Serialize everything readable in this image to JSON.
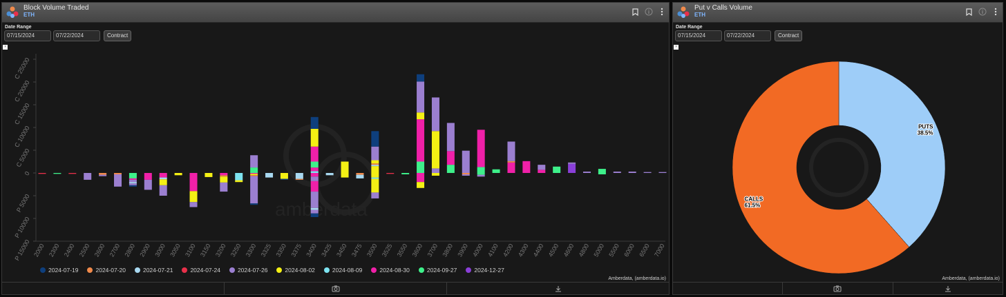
{
  "left": {
    "title": "Block Volume Traded",
    "subtitle": "ETH",
    "date_range_label": "Date Range",
    "date_from": "07/15/2024",
    "date_to": "07/22/2024",
    "contract_btn": "Contract",
    "watermark": "amberdata",
    "credit": "Amberdata, (amberdata.io)"
  },
  "right": {
    "title": "Put v Calls Volume",
    "subtitle": "ETH",
    "date_range_label": "Date Range",
    "date_from": "07/15/2024",
    "date_to": "07/22/2024",
    "contract_btn": "Contract",
    "credit": "Amberdata, (amberdata.io)"
  },
  "colors": {
    "2024-07-19": "#0e3f7d",
    "2024-07-20": "#f08a4b",
    "2024-07-21": "#a8d8f0",
    "2024-07-24": "#e8304a",
    "2024-07-26": "#9b7fd0",
    "2024-08-02": "#f4f014",
    "2024-08-09": "#7de3f0",
    "2024-08-30": "#f020a8",
    "2024-09-27": "#3ef08a",
    "2024-12-27": "#8a3fd8"
  },
  "chart_data": [
    {
      "type": "bar",
      "title": "Block Volume Traded",
      "stacked": true,
      "categories": [
        "2000",
        "2300",
        "2400",
        "2500",
        "2600",
        "2700",
        "2800",
        "2900",
        "3000",
        "3050",
        "3100",
        "3150",
        "3200",
        "3250",
        "3300",
        "3325",
        "3350",
        "3375",
        "3400",
        "3425",
        "3450",
        "3475",
        "3500",
        "3525",
        "3550",
        "3600",
        "3700",
        "3800",
        "3900",
        "4000",
        "4100",
        "4200",
        "4300",
        "4400",
        "4500",
        "4600",
        "4800",
        "5000",
        "5500",
        "6000",
        "6500",
        "7000"
      ],
      "ytick_labels": [
        "C 25000",
        "C 20000",
        "C 15000",
        "C 10000",
        "C 5000",
        "0",
        "P 5000",
        "P 10000",
        "P 15000"
      ],
      "ylim": [
        -15000,
        25000
      ],
      "legend": [
        "2024-07-19",
        "2024-07-20",
        "2024-07-21",
        "2024-07-24",
        "2024-07-26",
        "2024-08-02",
        "2024-08-09",
        "2024-08-30",
        "2024-09-27",
        "2024-12-27"
      ],
      "bars": [
        {
          "x": "2000",
          "calls": [],
          "puts": [
            [
              "2024-07-24",
              200
            ]
          ]
        },
        {
          "x": "2300",
          "calls": [],
          "puts": [
            [
              "2024-09-27",
              200
            ]
          ]
        },
        {
          "x": "2400",
          "calls": [],
          "puts": [
            [
              "2024-07-24",
              200
            ]
          ]
        },
        {
          "x": "2500",
          "calls": [],
          "puts": [
            [
              "2024-07-26",
              1500
            ]
          ]
        },
        {
          "x": "2600",
          "calls": [],
          "puts": [
            [
              "2024-07-20",
              400
            ],
            [
              "2024-07-26",
              300
            ]
          ]
        },
        {
          "x": "2700",
          "calls": [],
          "puts": [
            [
              "2024-07-20",
              300
            ],
            [
              "2024-07-26",
              2700
            ]
          ]
        },
        {
          "x": "2800",
          "calls": [],
          "puts": [
            [
              "2024-09-27",
              1200
            ],
            [
              "2024-08-30",
              300
            ],
            [
              "2024-07-26",
              500
            ],
            [
              "2024-07-21",
              300
            ],
            [
              "2024-07-26",
              400
            ],
            [
              "2024-07-19",
              300
            ]
          ]
        },
        {
          "x": "2900",
          "calls": [],
          "puts": [
            [
              "2024-08-30",
              1500
            ],
            [
              "2024-07-26",
              2200
            ]
          ]
        },
        {
          "x": "3000",
          "calls": [],
          "puts": [
            [
              "2024-08-30",
              1000
            ],
            [
              "2024-07-21",
              400
            ],
            [
              "2024-08-02",
              1300
            ],
            [
              "2024-07-26",
              2300
            ]
          ]
        },
        {
          "x": "3050",
          "calls": [],
          "puts": [
            [
              "2024-08-02",
              500
            ]
          ]
        },
        {
          "x": "3100",
          "calls": [],
          "puts": [
            [
              "2024-08-30",
              4000
            ],
            [
              "2024-08-02",
              2400
            ],
            [
              "2024-07-26",
              1100
            ]
          ]
        },
        {
          "x": "3150",
          "calls": [],
          "puts": [
            [
              "2024-08-02",
              900
            ]
          ]
        },
        {
          "x": "3200",
          "calls": [],
          "puts": [
            [
              "2024-08-30",
              500
            ],
            [
              "2024-07-20",
              300
            ],
            [
              "2024-08-02",
              1300
            ],
            [
              "2024-07-26",
              2000
            ]
          ]
        },
        {
          "x": "3250",
          "calls": [],
          "puts": [
            [
              "2024-08-09",
              1600
            ],
            [
              "2024-08-02",
              400
            ]
          ]
        },
        {
          "x": "3300",
          "calls": [
            [
              "2024-09-27",
              1200
            ],
            [
              "2024-07-26",
              2700
            ]
          ],
          "puts": [
            [
              "2024-08-30",
              200
            ],
            [
              "2024-08-02",
              300
            ],
            [
              "2024-07-20",
              200
            ],
            [
              "2024-07-26",
              6000
            ],
            [
              "2024-07-19",
              300
            ]
          ]
        },
        {
          "x": "3325",
          "calls": [],
          "puts": [
            [
              "2024-07-21",
              1000
            ]
          ]
        },
        {
          "x": "3350",
          "calls": [],
          "puts": [
            [
              "2024-08-02",
              1300
            ],
            [
              "2024-07-19",
              200
            ]
          ]
        },
        {
          "x": "3375",
          "calls": [],
          "puts": [
            [
              "2024-07-21",
              1300
            ],
            [
              "2024-07-20",
              200
            ]
          ]
        },
        {
          "x": "3400",
          "calls": [
            [
              "2024-08-09",
              400
            ],
            [
              "2024-08-30",
              800
            ],
            [
              "2024-09-27",
              1300
            ],
            [
              "2024-08-30",
              3300
            ],
            [
              "2024-08-02",
              3900
            ],
            [
              "2024-07-19",
              2600
            ]
          ],
          "puts": [
            [
              "2024-08-30",
              800
            ],
            [
              "2024-07-26",
              1000
            ],
            [
              "2024-08-30",
              2300
            ],
            [
              "2024-07-26",
              3600
            ],
            [
              "2024-07-21",
              400
            ],
            [
              "2024-07-26",
              800
            ],
            [
              "2024-07-19",
              800
            ]
          ]
        },
        {
          "x": "3425",
          "calls": [],
          "puts": [
            [
              "2024-07-21",
              500
            ]
          ]
        },
        {
          "x": "3450",
          "calls": [
            [
              "2024-08-02",
              2500
            ]
          ],
          "puts": [
            [
              "2024-08-02",
              1000
            ]
          ]
        },
        {
          "x": "3475",
          "calls": [],
          "puts": [
            [
              "2024-07-20",
              400
            ],
            [
              "2024-07-21",
              800
            ]
          ]
        },
        {
          "x": "3500",
          "calls": [
            [
              "2024-08-02",
              1500
            ],
            [
              "2024-07-21",
              300
            ],
            [
              "2024-07-20",
              300
            ],
            [
              "2024-08-02",
              700
            ],
            [
              "2024-07-26",
              3000
            ],
            [
              "2024-07-19",
              3400
            ]
          ],
          "puts": [
            [
              "2024-08-02",
              1000
            ],
            [
              "2024-08-09",
              300
            ],
            [
              "2024-08-02",
              3000
            ],
            [
              "2024-07-26",
              1300
            ]
          ]
        },
        {
          "x": "3525",
          "calls": [],
          "puts": [
            [
              "2024-07-24",
              200
            ]
          ]
        },
        {
          "x": "3550",
          "calls": [],
          "puts": [
            [
              "2024-09-27",
              300
            ]
          ]
        },
        {
          "x": "3600",
          "calls": [
            [
              "2024-09-27",
              2500
            ],
            [
              "2024-08-30",
              9300
            ],
            [
              "2024-08-02",
              1500
            ],
            [
              "2024-07-26",
              6800
            ],
            [
              "2024-07-19",
              1600
            ]
          ],
          "puts": [
            [
              "2024-08-30",
              2000
            ],
            [
              "2024-08-02",
              1300
            ]
          ]
        },
        {
          "x": "3700",
          "calls": [
            [
              "2024-07-26",
              1000
            ],
            [
              "2024-08-02",
              8200
            ],
            [
              "2024-07-26",
              7400
            ]
          ],
          "puts": [
            [
              "2024-08-02",
              600
            ]
          ]
        },
        {
          "x": "3800",
          "calls": [
            [
              "2024-09-27",
              1800
            ],
            [
              "2024-08-30",
              3000
            ],
            [
              "2024-07-26",
              6200
            ]
          ],
          "puts": []
        },
        {
          "x": "3900",
          "calls": [
            [
              "2024-07-26",
              4900
            ]
          ],
          "puts": [
            [
              "2024-07-20",
              300
            ],
            [
              "2024-07-26",
              300
            ]
          ]
        },
        {
          "x": "4000",
          "calls": [
            [
              "2024-09-27",
              1300
            ],
            [
              "2024-08-30",
              8200
            ]
          ],
          "puts": [
            [
              "2024-09-27",
              400
            ],
            [
              "2024-07-26",
              400
            ]
          ]
        },
        {
          "x": "4100",
          "calls": [
            [
              "2024-09-27",
              800
            ]
          ],
          "puts": []
        },
        {
          "x": "4200",
          "calls": [
            [
              "2024-08-30",
              2300
            ],
            [
              "2024-07-20",
              300
            ],
            [
              "2024-07-26",
              4300
            ]
          ],
          "puts": []
        },
        {
          "x": "4300",
          "calls": [
            [
              "2024-08-30",
              2600
            ]
          ],
          "puts": []
        },
        {
          "x": "4400",
          "calls": [
            [
              "2024-08-30",
              700
            ],
            [
              "2024-07-26",
              1100
            ]
          ],
          "puts": []
        },
        {
          "x": "4500",
          "calls": [
            [
              "2024-09-27",
              1400
            ]
          ],
          "puts": []
        },
        {
          "x": "4600",
          "calls": [
            [
              "2024-12-27",
              2000
            ],
            [
              "2024-07-26",
              300
            ]
          ],
          "puts": []
        },
        {
          "x": "4800",
          "calls": [
            [
              "2024-07-26",
              300
            ]
          ],
          "puts": []
        },
        {
          "x": "5000",
          "calls": [
            [
              "2024-09-27",
              900
            ]
          ],
          "puts": [
            [
              "2024-09-27",
              300
            ]
          ]
        },
        {
          "x": "5500",
          "calls": [
            [
              "2024-07-26",
              300
            ]
          ],
          "puts": []
        },
        {
          "x": "6000",
          "calls": [
            [
              "2024-07-26",
              300
            ]
          ],
          "puts": []
        },
        {
          "x": "6500",
          "calls": [
            [
              "2024-07-26",
              200
            ]
          ],
          "puts": []
        },
        {
          "x": "7000",
          "calls": [
            [
              "2024-07-26",
              200
            ]
          ],
          "puts": []
        }
      ]
    },
    {
      "type": "pie",
      "title": "Put v Calls Volume",
      "donut": true,
      "slices": [
        {
          "label": "PUTS",
          "value": 38.5,
          "text": "38.5%",
          "color": "#9ecdf8"
        },
        {
          "label": "CALLS",
          "value": 61.5,
          "text": "61.5%",
          "color": "#f26a24"
        }
      ]
    }
  ]
}
